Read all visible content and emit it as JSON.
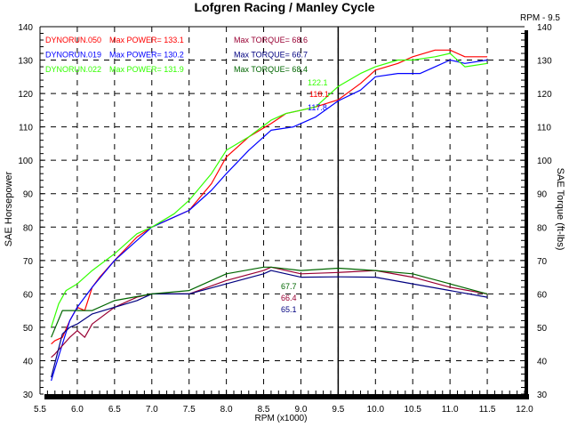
{
  "chart_data": {
    "type": "line",
    "title": "Lofgren Racing / Manley Cycle",
    "cursor_label": "RPM - 9.5",
    "cursor_rpm": 9.5,
    "xlabel": "RPM (x1000)",
    "ylabel": "SAE Horsepower",
    "y2label": "SAE Torque (ft-lbs)",
    "xlim": [
      5.5,
      12.0
    ],
    "ylim": [
      30,
      140
    ],
    "y2lim": [
      30,
      140
    ],
    "grid": true,
    "x_ticks": [
      "5.5",
      "6.0",
      "6.5",
      "7.0",
      "7.5",
      "8.0",
      "8.5",
      "9.0",
      "9.5",
      "10.0",
      "10.5",
      "11.0",
      "11.5",
      "12.0"
    ],
    "y_ticks": [
      "140",
      "130",
      "120",
      "110",
      "100",
      "90",
      "80",
      "70",
      "60",
      "50",
      "40",
      "30"
    ],
    "legend": [
      {
        "run": "DYNORUN.050",
        "power": "Max POWER= 133.1",
        "torque": "Max TORQUE= 68.6",
        "color": "#ff0000",
        "tcolor": "#990033"
      },
      {
        "run": "DYNORUN.019",
        "power": "Max POWER= 130.2",
        "torque": "Max TORQUE= 66.7",
        "color": "#0000ff",
        "tcolor": "#000080"
      },
      {
        "run": "DYNORUN.022",
        "power": "Max POWER= 131.9",
        "torque": "Max TORQUE= 68.4",
        "color": "#33ff00",
        "tcolor": "#006600"
      }
    ],
    "cursor_values": {
      "power": [
        "118.1",
        "117.8",
        "122.1"
      ],
      "torque": [
        "66.4",
        "65.1",
        "67.7"
      ]
    },
    "series": [
      {
        "name": "DYNORUN.050 Power",
        "color": "#ff0000",
        "x": [
          5.65,
          5.7,
          5.8,
          5.9,
          6.0,
          6.1,
          6.2,
          6.3,
          6.5,
          6.8,
          7.0,
          7.2,
          7.5,
          7.8,
          8.0,
          8.3,
          8.6,
          8.8,
          9.0,
          9.2,
          9.5,
          9.8,
          10.0,
          10.3,
          10.5,
          10.8,
          11.0,
          11.2,
          11.5
        ],
        "y": [
          45,
          46,
          47,
          52,
          56,
          55,
          62,
          65,
          70,
          77,
          80,
          82,
          85,
          93,
          101,
          107,
          111,
          114,
          115,
          116,
          118.1,
          123,
          127,
          129,
          131,
          133,
          133,
          131,
          131
        ]
      },
      {
        "name": "DYNORUN.019 Power",
        "color": "#0000ff",
        "x": [
          5.65,
          5.8,
          5.9,
          6.0,
          6.2,
          6.5,
          6.8,
          7.0,
          7.2,
          7.5,
          7.8,
          8.0,
          8.3,
          8.6,
          8.9,
          9.2,
          9.5,
          9.8,
          10.0,
          10.3,
          10.6,
          10.8,
          11.0,
          11.2,
          11.5
        ],
        "y": [
          34,
          45,
          52,
          56,
          62,
          70,
          76,
          80,
          82,
          85,
          91,
          96,
          103,
          109,
          110,
          113,
          117.8,
          121,
          125,
          126,
          126,
          128,
          130,
          129,
          130
        ]
      },
      {
        "name": "DYNORUN.022 Power",
        "color": "#33ff00",
        "x": [
          5.65,
          5.75,
          5.85,
          6.0,
          6.2,
          6.5,
          6.8,
          7.0,
          7.3,
          7.5,
          7.8,
          8.0,
          8.3,
          8.6,
          8.8,
          9.0,
          9.2,
          9.5,
          9.8,
          10.0,
          10.3,
          10.5,
          10.8,
          11.0,
          11.2,
          11.5
        ],
        "y": [
          50,
          57,
          61,
          63,
          67,
          72,
          78,
          80,
          84,
          88,
          96,
          103,
          107,
          112,
          114,
          115,
          116,
          122.1,
          126,
          128,
          130,
          130,
          131,
          132,
          128,
          129
        ]
      },
      {
        "name": "DYNORUN.050 Torque",
        "color": "#990033",
        "x": [
          5.65,
          5.7,
          5.9,
          6.0,
          6.1,
          6.2,
          6.5,
          6.8,
          7.0,
          7.5,
          8.0,
          8.5,
          8.6,
          9.0,
          9.5,
          10.0,
          10.5,
          11.0,
          11.5
        ],
        "y": [
          41,
          42,
          47,
          49,
          47,
          51,
          56,
          59,
          60,
          60,
          64,
          67,
          68,
          66,
          66.4,
          67,
          65,
          62,
          60
        ]
      },
      {
        "name": "DYNORUN.019 Torque",
        "color": "#000080",
        "x": [
          5.65,
          5.8,
          5.9,
          6.0,
          6.2,
          6.5,
          6.8,
          7.0,
          7.5,
          8.0,
          8.5,
          8.6,
          9.0,
          9.5,
          10.0,
          10.5,
          11.0,
          11.5
        ],
        "y": [
          35,
          48,
          50,
          51,
          54,
          56,
          58,
          60,
          60,
          63,
          66,
          67,
          65,
          65.1,
          65,
          63,
          61,
          59
        ]
      },
      {
        "name": "DYNORUN.022 Torque",
        "color": "#006600",
        "x": [
          5.65,
          5.8,
          6.2,
          6.5,
          7.0,
          7.5,
          8.0,
          8.5,
          8.6,
          9.0,
          9.5,
          10.0,
          10.5,
          11.0,
          11.5
        ],
        "y": [
          47,
          55,
          55,
          58,
          60,
          61,
          66,
          68,
          68,
          67,
          67.7,
          67,
          66,
          63,
          60
        ]
      }
    ]
  }
}
